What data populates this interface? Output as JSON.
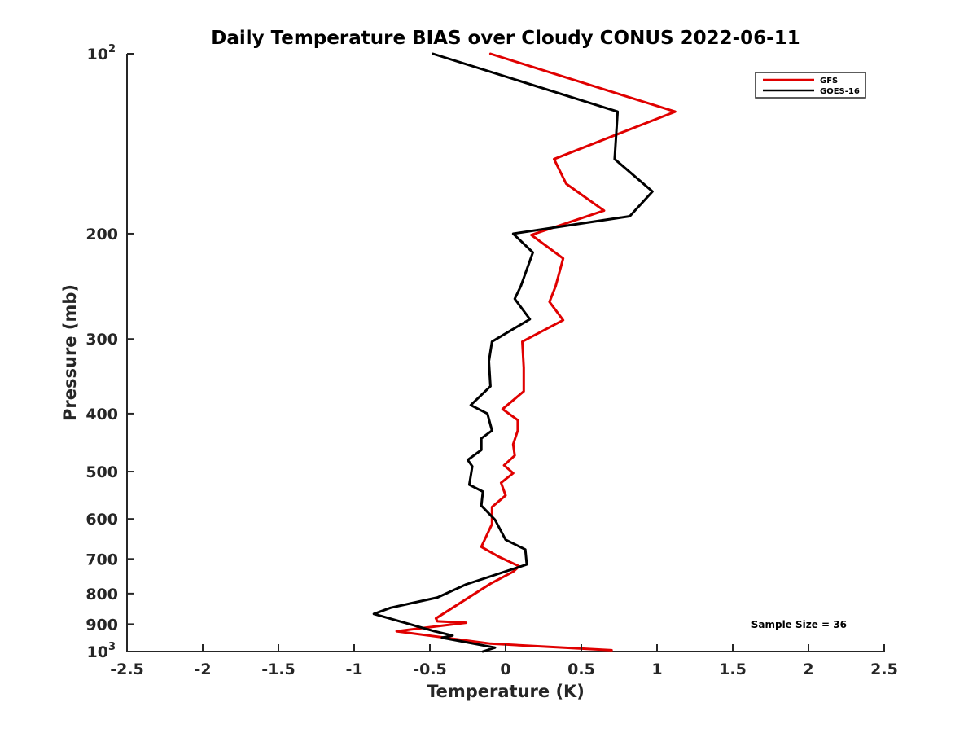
{
  "chart_data": {
    "type": "line",
    "title": "Daily Temperature BIAS over Cloudy CONUS 2022-06-11",
    "xlabel": "Temperature (K)",
    "ylabel": "Pressure (mb)",
    "xlim": [
      -2.5,
      2.5
    ],
    "ylim": [
      100,
      1000
    ],
    "y_scale": "log",
    "y_reversed": true,
    "x_ticks": [
      "-2.5",
      "-2",
      "-1.5",
      "-1",
      "-0.5",
      "0",
      "0.5",
      "1",
      "1.5",
      "2",
      "2.5"
    ],
    "y_ticks": [
      {
        "value": 100,
        "label": "10",
        "sup": "2"
      },
      {
        "value": 200,
        "label": "200"
      },
      {
        "value": 300,
        "label": "300"
      },
      {
        "value": 400,
        "label": "400"
      },
      {
        "value": 500,
        "label": "500"
      },
      {
        "value": 600,
        "label": "600"
      },
      {
        "value": 700,
        "label": "700"
      },
      {
        "value": 800,
        "label": "800"
      },
      {
        "value": 900,
        "label": "900"
      },
      {
        "value": 1000,
        "label": "10",
        "sup": "3"
      }
    ],
    "grid": false,
    "legend_position": "top-right",
    "annotation": "Sample Size = 36",
    "series": [
      {
        "name": "GFS",
        "color": "#e00000",
        "points": [
          [
            -0.1,
            100
          ],
          [
            1.12,
            125
          ],
          [
            0.32,
            150
          ],
          [
            0.4,
            165
          ],
          [
            0.65,
            183
          ],
          [
            0.17,
            201
          ],
          [
            0.38,
            220
          ],
          [
            0.33,
            245
          ],
          [
            0.29,
            260
          ],
          [
            0.38,
            279
          ],
          [
            0.11,
            303
          ],
          [
            0.12,
            335
          ],
          [
            0.12,
            367
          ],
          [
            -0.02,
            393
          ],
          [
            0.08,
            410
          ],
          [
            0.08,
            427
          ],
          [
            0.05,
            450
          ],
          [
            0.06,
            470
          ],
          [
            -0.01,
            488
          ],
          [
            0.05,
            503
          ],
          [
            -0.03,
            522
          ],
          [
            0.0,
            548
          ],
          [
            -0.09,
            573
          ],
          [
            -0.09,
            612
          ],
          [
            -0.16,
            668
          ],
          [
            -0.05,
            693
          ],
          [
            0.09,
            720
          ],
          [
            0.05,
            735
          ],
          [
            -0.1,
            770
          ],
          [
            -0.46,
            880
          ],
          [
            -0.45,
            890
          ],
          [
            -0.26,
            895
          ],
          [
            -0.72,
            925
          ],
          [
            -0.1,
            970
          ],
          [
            0.7,
            995
          ]
        ]
      },
      {
        "name": "GOES-16",
        "color": "#000000",
        "points": [
          [
            -0.48,
            100
          ],
          [
            0.74,
            125
          ],
          [
            0.72,
            150
          ],
          [
            0.97,
            170
          ],
          [
            0.82,
            187
          ],
          [
            0.05,
            200
          ],
          [
            0.18,
            215
          ],
          [
            0.1,
            245
          ],
          [
            0.06,
            257
          ],
          [
            0.16,
            278
          ],
          [
            -0.09,
            303
          ],
          [
            -0.11,
            327
          ],
          [
            -0.1,
            360
          ],
          [
            -0.23,
            387
          ],
          [
            -0.12,
            400
          ],
          [
            -0.09,
            427
          ],
          [
            -0.16,
            440
          ],
          [
            -0.16,
            460
          ],
          [
            -0.25,
            478
          ],
          [
            -0.22,
            490
          ],
          [
            -0.24,
            526
          ],
          [
            -0.15,
            540
          ],
          [
            -0.16,
            570
          ],
          [
            -0.07,
            602
          ],
          [
            0.0,
            650
          ],
          [
            0.13,
            675
          ],
          [
            0.14,
            715
          ],
          [
            -0.26,
            772
          ],
          [
            -0.45,
            812
          ],
          [
            -0.76,
            845
          ],
          [
            -0.87,
            865
          ],
          [
            -0.47,
            925
          ],
          [
            -0.35,
            940
          ],
          [
            -0.42,
            948
          ],
          [
            -0.07,
            985
          ],
          [
            -0.15,
            1000
          ]
        ]
      }
    ]
  }
}
